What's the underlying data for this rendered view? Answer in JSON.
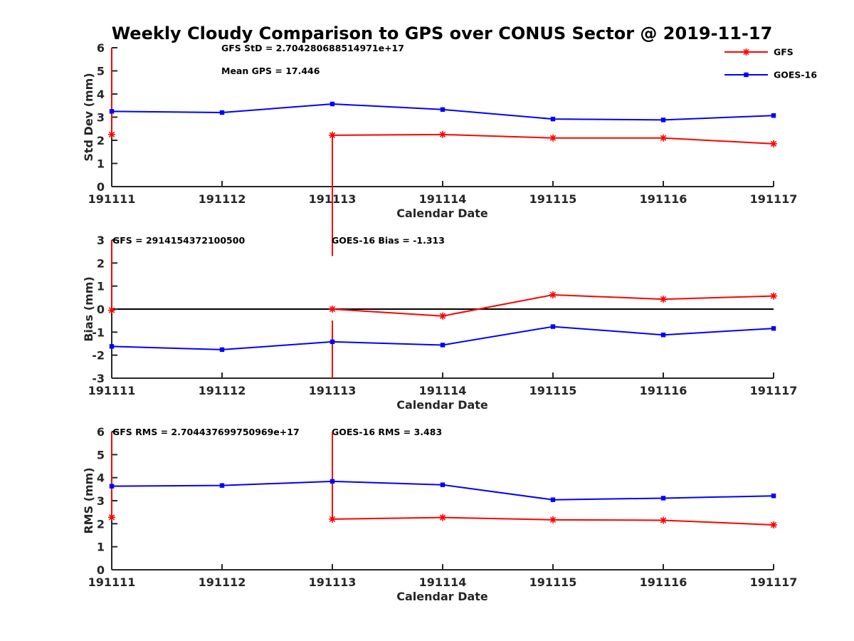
{
  "title": "Weekly Cloudy Comparison to GPS over CONUS Sector @ 2019-11-17",
  "colors": {
    "GFS": "#ff0000",
    "GOES-16": "#0000ff",
    "axis": "#262626",
    "zero_line": "#000000"
  },
  "legend": {
    "placement": "top-right",
    "entries": [
      {
        "name": "GFS",
        "color": "#ff0000",
        "marker": "asterisk"
      },
      {
        "name": "GOES-16",
        "color": "#0000ff",
        "marker": "square"
      }
    ]
  },
  "chart_data": [
    {
      "type": "line",
      "xlabel": "Calendar Date",
      "ylabel": "Std Dev (mm)",
      "categories": [
        "191111",
        "191112",
        "191113",
        "191114",
        "191115",
        "191116",
        "191117"
      ],
      "ylim": [
        0,
        6
      ],
      "yticks": [
        0,
        1,
        2,
        3,
        4,
        5,
        6
      ],
      "zero_line": false,
      "annotations": [
        "GFS StD = 2.704280688514971e+17",
        "Mean GPS = 17.446"
      ],
      "series": [
        {
          "name": "GFS",
          "values": [
            2.25,
            null,
            2.22,
            2.25,
            2.1,
            2.1,
            1.85
          ],
          "connectors": [
            {
              "from_index": 0,
              "to_index": 0,
              "from_value": 2.25,
              "to_value": 6.0
            },
            {
              "from_index": 2,
              "to_index": 2,
              "from_value": 2.22,
              "to_value": -3.0
            }
          ]
        },
        {
          "name": "GOES-16",
          "values": [
            3.25,
            3.2,
            3.57,
            3.33,
            2.92,
            2.88,
            3.07
          ]
        }
      ]
    },
    {
      "type": "line",
      "xlabel": "Calendar Date",
      "ylabel": "Bias (mm)",
      "categories": [
        "191111",
        "191112",
        "191113",
        "191114",
        "191115",
        "191116",
        "191117"
      ],
      "ylim": [
        -3,
        3
      ],
      "yticks": [
        -3,
        -2,
        -1,
        0,
        1,
        2,
        3
      ],
      "zero_line": true,
      "annotations": [
        "GFS = 2914154372100500",
        "GOES-16 Bias  = -1.313"
      ],
      "series": [
        {
          "name": "GFS",
          "values": [
            -0.05,
            null,
            0.0,
            -0.3,
            0.62,
            0.43,
            0.57
          ],
          "connectors": [
            {
              "from_index": 0,
              "to_index": 0,
              "from_value": -0.05,
              "to_value": 3.0
            },
            {
              "from_index": 2,
              "to_index": 2,
              "from_value": -0.5,
              "to_value": -3.0
            }
          ]
        },
        {
          "name": "GOES-16",
          "values": [
            -1.62,
            -1.76,
            -1.42,
            -1.56,
            -0.76,
            -1.12,
            -0.84
          ]
        }
      ]
    },
    {
      "type": "line",
      "xlabel": "Calendar Date",
      "ylabel": "RMS (mm)",
      "categories": [
        "191111",
        "191112",
        "191113",
        "191114",
        "191115",
        "191116",
        "191117"
      ],
      "ylim": [
        0,
        6
      ],
      "yticks": [
        0,
        1,
        2,
        3,
        4,
        5,
        6
      ],
      "zero_line": false,
      "annotations": [
        "GFS RMS = 2.704437699750969e+17",
        "GOES-16 RMS = 3.483"
      ],
      "series": [
        {
          "name": "GFS",
          "values": [
            2.28,
            null,
            2.2,
            2.27,
            2.17,
            2.15,
            1.95
          ],
          "connectors": [
            {
              "from_index": 0,
              "to_index": 0,
              "from_value": 2.28,
              "to_value": 6.0
            },
            {
              "from_index": 2,
              "to_index": 2,
              "from_value": 2.2,
              "to_value": 6.0
            }
          ]
        },
        {
          "name": "GOES-16",
          "values": [
            3.63,
            3.66,
            3.84,
            3.69,
            3.04,
            3.11,
            3.21
          ]
        }
      ]
    }
  ]
}
